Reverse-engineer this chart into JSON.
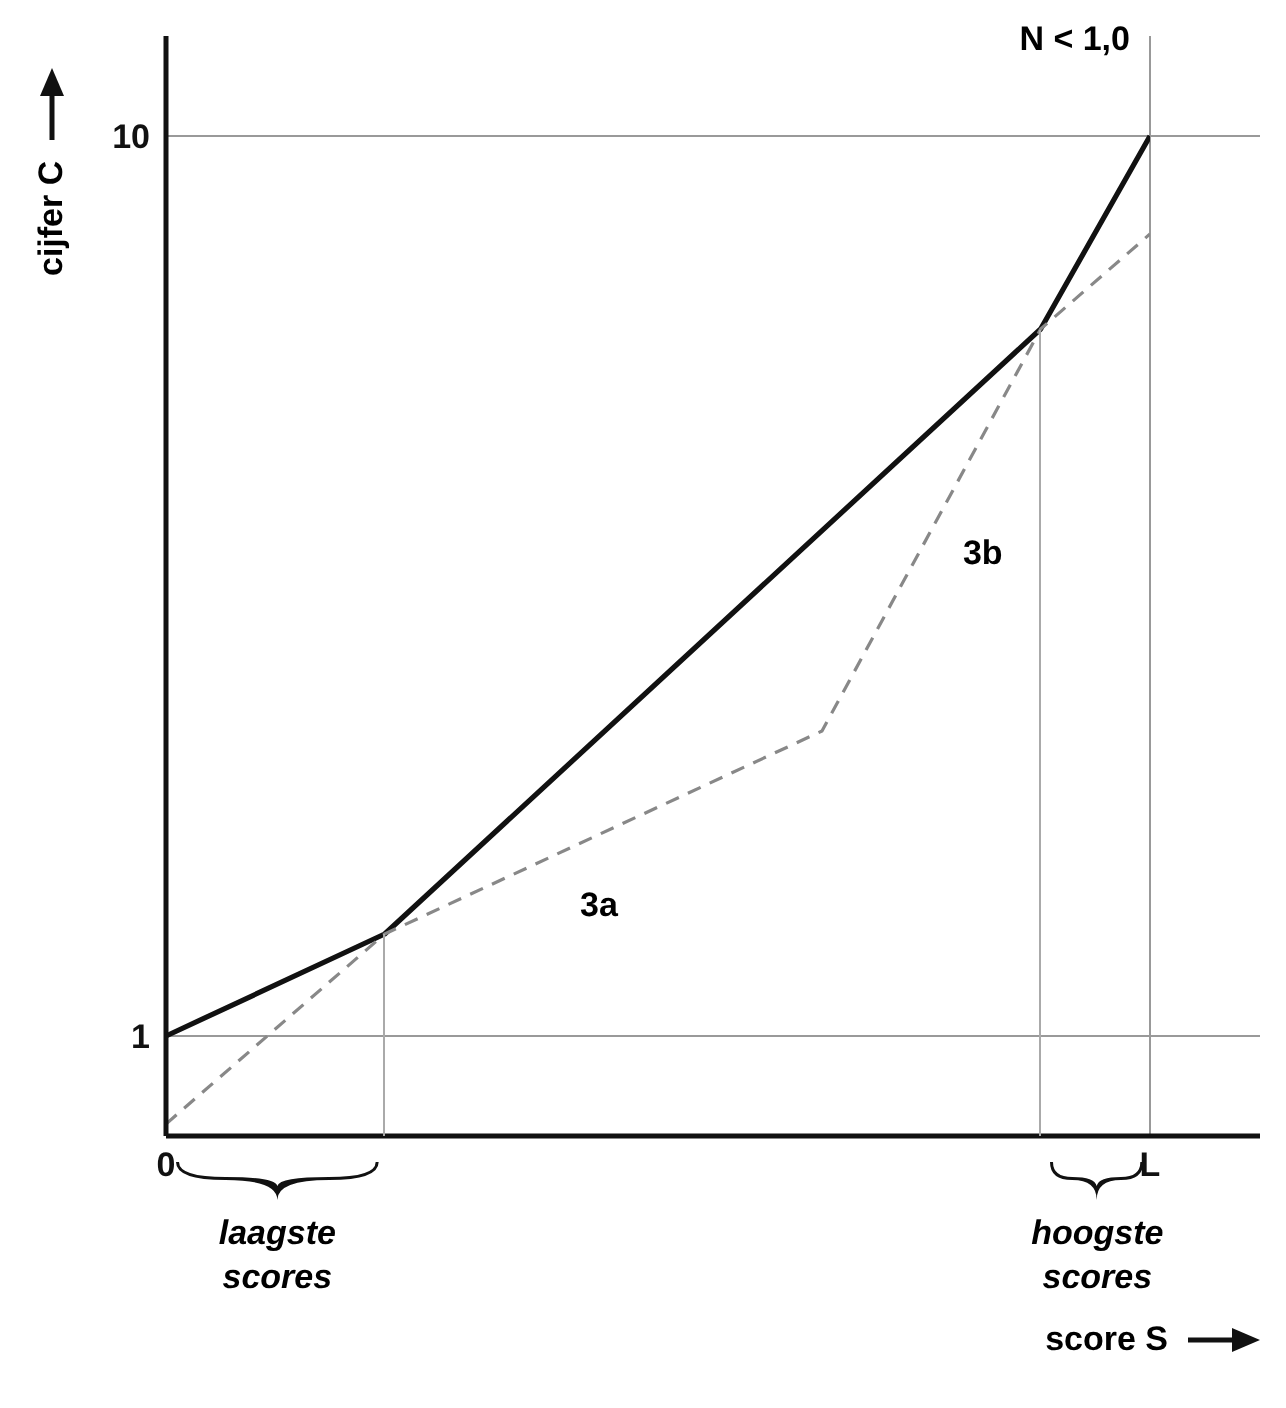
{
  "chart_data": {
    "type": "line",
    "xlabel": "score S",
    "ylabel": "cijfer C",
    "categories": [
      "0",
      null,
      null,
      null,
      null,
      null,
      null,
      null,
      null,
      "L"
    ],
    "ylim": [
      0,
      11
    ],
    "yticks": [
      1,
      10
    ],
    "grid": true,
    "marker": "none",
    "series": [
      {
        "color": "#111111",
        "line_style": "solid",
        "values": [
          1,
          null,
          2.02,
          null,
          null,
          null,
          null,
          null,
          8.07,
          10
        ]
      },
      {
        "color": "#888888",
        "line_style": "dashed",
        "values": [
          0.12,
          null,
          2.02,
          null,
          null,
          null,
          4.05,
          null,
          8.07,
          9.02
        ]
      }
    ],
    "annotations": [
      "N < 1,0",
      "3a",
      "3b",
      "laagste scores",
      "hoogste scores"
    ]
  }
}
